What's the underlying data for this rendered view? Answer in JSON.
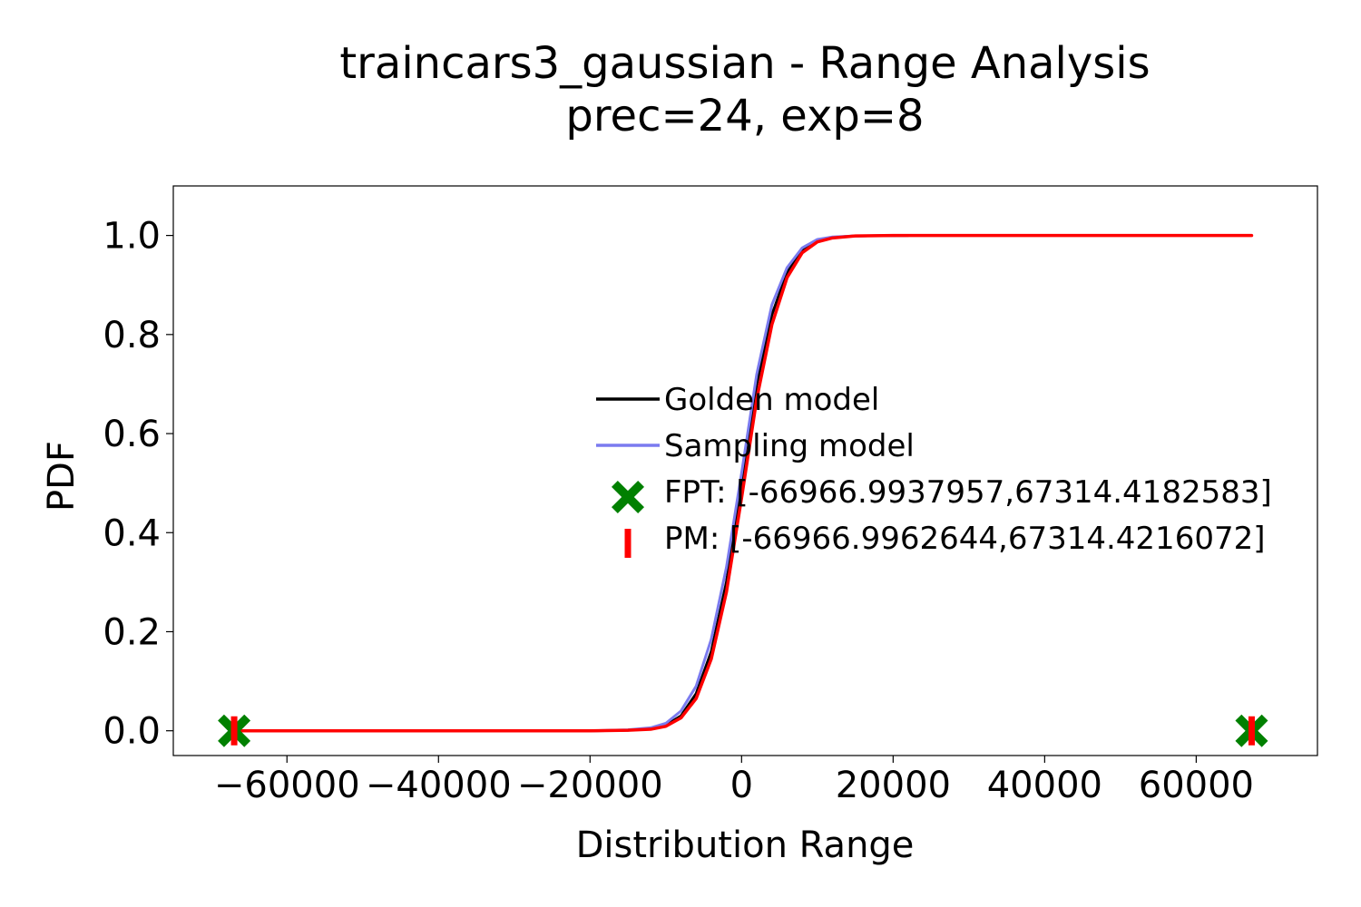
{
  "chart_data": {
    "type": "line",
    "title": "traincars3_gaussian - Range Analysis",
    "subtitle": "prec=24, exp=8",
    "xlabel": "Distribution Range",
    "ylabel": "PDF",
    "xlim": [
      -75000,
      76000
    ],
    "ylim": [
      -0.05,
      1.1
    ],
    "xticks": [
      -60000,
      -40000,
      -20000,
      0,
      20000,
      40000,
      60000
    ],
    "xtick_labels": [
      "−60000",
      "−40000",
      "−20000",
      "0",
      "20000",
      "40000",
      "60000"
    ],
    "yticks": [
      0.0,
      0.2,
      0.4,
      0.6,
      0.8,
      1.0
    ],
    "ytick_labels": [
      "0.0",
      "0.2",
      "0.4",
      "0.6",
      "0.8",
      "1.0"
    ],
    "grid": false,
    "legend_position": "center-right",
    "series": [
      {
        "name": "Golden model",
        "kind": "line",
        "color": "#000000",
        "x": [
          -20000,
          -15000,
          -12000,
          -10000,
          -8000,
          -6000,
          -4000,
          -2000,
          0,
          2000,
          4000,
          6000,
          8000,
          10000,
          12000,
          15000,
          22000
        ],
        "y": [
          0.0,
          0.001,
          0.004,
          0.011,
          0.03,
          0.075,
          0.16,
          0.3,
          0.5,
          0.7,
          0.84,
          0.925,
          0.97,
          0.989,
          0.996,
          0.999,
          1.0
        ]
      },
      {
        "name": "Sampling model",
        "kind": "line",
        "color": "#7b7bef",
        "x": [
          -20000,
          -15000,
          -12000,
          -10000,
          -8000,
          -6000,
          -4000,
          -2000,
          0,
          2000,
          4000,
          6000,
          8000,
          10000,
          12000,
          15000,
          22000
        ],
        "y": [
          0.0,
          0.002,
          0.006,
          0.015,
          0.04,
          0.09,
          0.185,
          0.33,
          0.52,
          0.72,
          0.86,
          0.935,
          0.975,
          0.992,
          0.997,
          0.999,
          1.0
        ]
      },
      {
        "name": "",
        "kind": "line",
        "color": "#ff0000",
        "x": [
          -66966.9962644,
          -20000,
          -15000,
          -12000,
          -10000,
          -8000,
          -6000,
          -4000,
          -2000,
          0,
          2000,
          4000,
          6000,
          8000,
          10000,
          12000,
          15000,
          20000,
          67314.4216072
        ],
        "y": [
          0.0,
          0.0,
          0.001,
          0.003,
          0.009,
          0.026,
          0.065,
          0.145,
          0.28,
          0.47,
          0.67,
          0.82,
          0.915,
          0.965,
          0.987,
          0.995,
          0.999,
          1.0,
          1.0
        ]
      },
      {
        "name": "FPT: [-66966.9937957,67314.4182583]",
        "kind": "marker",
        "marker": "X",
        "color": "#008000",
        "x": [
          -66966.9937957,
          67314.4182583
        ],
        "y": [
          0.0,
          0.0
        ]
      },
      {
        "name": "PM: [-66966.9962644,67314.4216072]",
        "kind": "marker",
        "marker": "|",
        "color": "#ff0000",
        "x": [
          -66966.9962644,
          67314.4216072
        ],
        "y": [
          0.0,
          0.0
        ]
      }
    ]
  }
}
